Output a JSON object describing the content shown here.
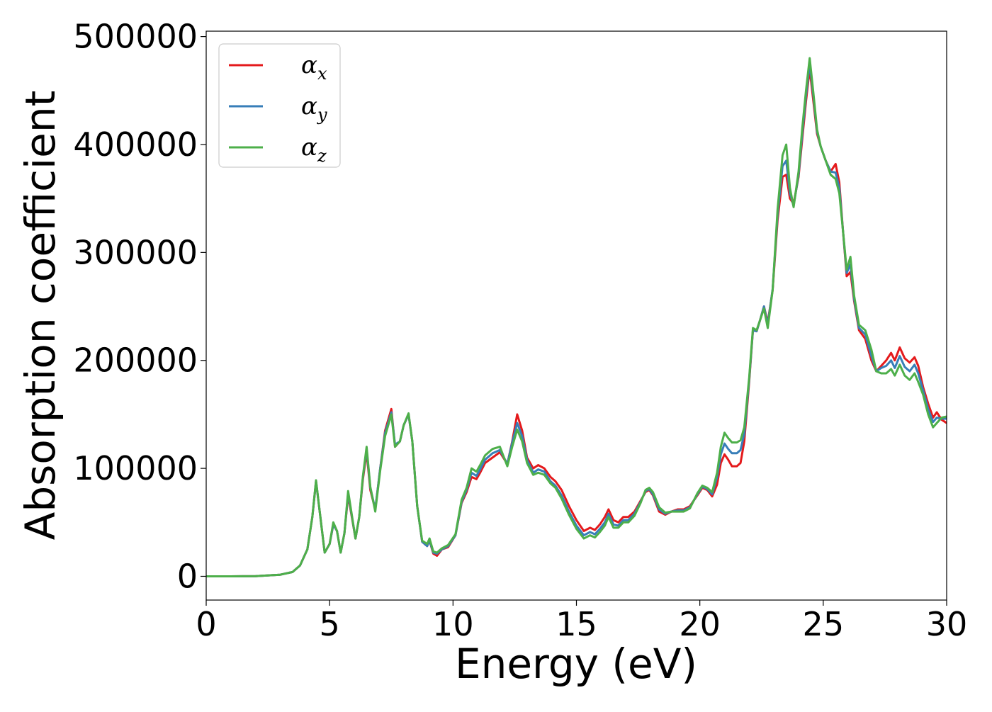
{
  "chart_data": {
    "type": "line",
    "xlabel": "Energy (eV)",
    "ylabel": "Absorption coefficient",
    "xlim": [
      0,
      30
    ],
    "ylim": [
      -22000,
      505000
    ],
    "xticks": [
      0,
      5,
      10,
      15,
      20,
      25,
      30
    ],
    "yticks": [
      0,
      100000,
      200000,
      300000,
      400000,
      500000
    ],
    "grid": false,
    "legend_position": "top-left",
    "series": [
      {
        "name": "α_x",
        "symbol": "α",
        "subscript": "x",
        "color": "#e41a1c",
        "x": [
          0,
          1,
          2,
          3,
          3.5,
          3.8,
          4.1,
          4.3,
          4.45,
          4.6,
          4.8,
          5.0,
          5.15,
          5.3,
          5.45,
          5.6,
          5.75,
          5.9,
          6.05,
          6.2,
          6.35,
          6.5,
          6.65,
          6.85,
          7.05,
          7.25,
          7.5,
          7.65,
          7.85,
          8.0,
          8.2,
          8.35,
          8.55,
          8.75,
          8.95,
          9.05,
          9.2,
          9.35,
          9.55,
          9.8,
          10.1,
          10.35,
          10.55,
          10.75,
          10.95,
          11.1,
          11.3,
          11.6,
          11.9,
          12.2,
          12.4,
          12.6,
          12.8,
          13.0,
          13.25,
          13.45,
          13.7,
          13.95,
          14.15,
          14.4,
          14.7,
          15.0,
          15.3,
          15.55,
          15.75,
          15.95,
          16.15,
          16.3,
          16.5,
          16.7,
          16.9,
          17.1,
          17.35,
          17.6,
          17.8,
          17.95,
          18.1,
          18.35,
          18.6,
          18.85,
          19.1,
          19.35,
          19.6,
          19.9,
          20.1,
          20.3,
          20.5,
          20.7,
          20.85,
          21.0,
          21.15,
          21.3,
          21.5,
          21.65,
          21.8,
          22.0,
          22.15,
          22.3,
          22.45,
          22.6,
          22.75,
          22.95,
          23.15,
          23.35,
          23.5,
          23.65,
          23.8,
          24.0,
          24.15,
          24.3,
          24.45,
          24.6,
          24.75,
          24.9,
          25.1,
          25.3,
          25.5,
          25.65,
          25.8,
          25.95,
          26.1,
          26.25,
          26.45,
          26.7,
          26.95,
          27.15,
          27.35,
          27.55,
          27.75,
          27.9,
          28.1,
          28.3,
          28.5,
          28.7,
          28.85,
          29.05,
          29.25,
          29.45,
          29.6,
          29.8,
          30.0
        ],
        "y": [
          0,
          0,
          200,
          1500,
          4000,
          10000,
          25000,
          55000,
          88000,
          60000,
          22000,
          30000,
          48000,
          42000,
          22000,
          40000,
          75000,
          55000,
          35000,
          55000,
          90000,
          115000,
          80000,
          62000,
          100000,
          135000,
          155000,
          120000,
          125000,
          140000,
          150000,
          125000,
          65000,
          32000,
          28000,
          33000,
          21000,
          19000,
          25000,
          27000,
          38000,
          68000,
          78000,
          92000,
          90000,
          96000,
          105000,
          110000,
          115000,
          104000,
          125000,
          150000,
          135000,
          110000,
          100000,
          103000,
          100000,
          92000,
          88000,
          80000,
          65000,
          52000,
          42000,
          45000,
          43000,
          48000,
          55000,
          62000,
          52000,
          50000,
          55000,
          55000,
          60000,
          70000,
          78000,
          80000,
          75000,
          60000,
          57000,
          60000,
          62000,
          62000,
          65000,
          75000,
          82000,
          80000,
          74000,
          85000,
          105000,
          113000,
          108000,
          102000,
          102000,
          105000,
          125000,
          180000,
          228000,
          227000,
          238000,
          250000,
          235000,
          265000,
          330000,
          370000,
          372000,
          350000,
          345000,
          370000,
          405000,
          440000,
          470000,
          440000,
          410000,
          398000,
          385000,
          375000,
          382000,
          365000,
          320000,
          278000,
          282000,
          255000,
          228000,
          220000,
          200000,
          190000,
          195000,
          200000,
          207000,
          200000,
          212000,
          202000,
          198000,
          203000,
          195000,
          175000,
          160000,
          147000,
          152000,
          145000,
          142000
        ]
      },
      {
        "name": "α_y",
        "symbol": "α",
        "subscript": "y",
        "color": "#377eb8",
        "x": [
          0,
          1,
          2,
          3,
          3.5,
          3.8,
          4.1,
          4.3,
          4.45,
          4.6,
          4.8,
          5.0,
          5.15,
          5.3,
          5.45,
          5.6,
          5.75,
          5.9,
          6.05,
          6.2,
          6.35,
          6.5,
          6.65,
          6.85,
          7.05,
          7.25,
          7.5,
          7.65,
          7.85,
          8.0,
          8.2,
          8.35,
          8.55,
          8.75,
          8.95,
          9.05,
          9.2,
          9.35,
          9.55,
          9.8,
          10.1,
          10.35,
          10.55,
          10.75,
          10.95,
          11.1,
          11.3,
          11.6,
          11.9,
          12.2,
          12.4,
          12.6,
          12.8,
          13.0,
          13.25,
          13.45,
          13.7,
          13.95,
          14.15,
          14.4,
          14.7,
          15.0,
          15.3,
          15.55,
          15.75,
          15.95,
          16.15,
          16.3,
          16.5,
          16.7,
          16.9,
          17.1,
          17.35,
          17.6,
          17.8,
          17.95,
          18.1,
          18.35,
          18.6,
          18.85,
          19.1,
          19.35,
          19.6,
          19.9,
          20.1,
          20.3,
          20.5,
          20.7,
          20.85,
          21.0,
          21.15,
          21.3,
          21.5,
          21.65,
          21.8,
          22.0,
          22.15,
          22.3,
          22.45,
          22.6,
          22.75,
          22.95,
          23.15,
          23.35,
          23.5,
          23.65,
          23.8,
          24.0,
          24.15,
          24.3,
          24.45,
          24.6,
          24.75,
          24.9,
          25.1,
          25.3,
          25.5,
          25.65,
          25.8,
          25.95,
          26.1,
          26.25,
          26.45,
          26.7,
          26.95,
          27.15,
          27.35,
          27.55,
          27.75,
          27.9,
          28.1,
          28.3,
          28.5,
          28.7,
          28.85,
          29.05,
          29.25,
          29.45,
          29.6,
          29.8,
          30.0
        ],
        "y": [
          0,
          0,
          200,
          1500,
          4000,
          10000,
          25000,
          55000,
          88000,
          60000,
          22000,
          30000,
          48000,
          42000,
          22000,
          40000,
          77000,
          56000,
          35000,
          55000,
          92000,
          118000,
          82000,
          62000,
          100000,
          133000,
          152000,
          122000,
          125000,
          140000,
          150000,
          125000,
          65000,
          32000,
          28000,
          33000,
          22000,
          21000,
          25000,
          28000,
          38000,
          69000,
          80000,
          96000,
          93000,
          99000,
          108000,
          114000,
          117000,
          104000,
          124000,
          142000,
          130000,
          108000,
          96000,
          99000,
          97000,
          88000,
          84000,
          75000,
          60000,
          47000,
          38000,
          41000,
          39000,
          44000,
          50000,
          58000,
          48000,
          47000,
          52000,
          52000,
          58000,
          69000,
          79000,
          81000,
          76000,
          62000,
          58000,
          60000,
          61000,
          61000,
          64000,
          76000,
          83000,
          81000,
          76000,
          92000,
          113000,
          123000,
          118000,
          114000,
          114000,
          117000,
          132000,
          182000,
          228000,
          227000,
          238000,
          250000,
          233000,
          266000,
          335000,
          380000,
          385000,
          355000,
          343000,
          372000,
          410000,
          445000,
          475000,
          445000,
          412000,
          398000,
          385000,
          375000,
          374000,
          360000,
          320000,
          281000,
          289000,
          257000,
          230000,
          224000,
          204000,
          190000,
          193000,
          195000,
          200000,
          193000,
          204000,
          194000,
          190000,
          196000,
          188000,
          172000,
          155000,
          143000,
          147000,
          146000,
          146000
        ]
      },
      {
        "name": "α_z",
        "symbol": "α",
        "subscript": "z",
        "color": "#4daf4a",
        "x": [
          0,
          1,
          2,
          3,
          3.5,
          3.8,
          4.1,
          4.3,
          4.45,
          4.6,
          4.8,
          5.0,
          5.15,
          5.3,
          5.45,
          5.6,
          5.75,
          5.9,
          6.05,
          6.2,
          6.35,
          6.5,
          6.65,
          6.85,
          7.05,
          7.25,
          7.5,
          7.65,
          7.85,
          8.0,
          8.2,
          8.35,
          8.55,
          8.75,
          8.95,
          9.05,
          9.2,
          9.35,
          9.55,
          9.8,
          10.1,
          10.35,
          10.55,
          10.75,
          10.95,
          11.1,
          11.3,
          11.6,
          11.9,
          12.2,
          12.4,
          12.6,
          12.8,
          13.0,
          13.25,
          13.45,
          13.7,
          13.95,
          14.15,
          14.4,
          14.7,
          15.0,
          15.3,
          15.55,
          15.75,
          15.95,
          16.15,
          16.3,
          16.5,
          16.7,
          16.9,
          17.1,
          17.35,
          17.6,
          17.8,
          17.95,
          18.1,
          18.35,
          18.6,
          18.85,
          19.1,
          19.35,
          19.6,
          19.9,
          20.1,
          20.3,
          20.5,
          20.7,
          20.85,
          21.0,
          21.15,
          21.3,
          21.5,
          21.65,
          21.8,
          22.0,
          22.15,
          22.3,
          22.45,
          22.6,
          22.75,
          22.95,
          23.15,
          23.35,
          23.5,
          23.65,
          23.8,
          24.0,
          24.15,
          24.3,
          24.45,
          24.6,
          24.75,
          24.9,
          25.1,
          25.3,
          25.5,
          25.65,
          25.8,
          25.95,
          26.1,
          26.25,
          26.45,
          26.7,
          26.95,
          27.15,
          27.35,
          27.55,
          27.75,
          27.9,
          28.1,
          28.3,
          28.5,
          28.7,
          28.85,
          29.05,
          29.25,
          29.45,
          29.6,
          29.8,
          30.0
        ],
        "y": [
          0,
          0,
          200,
          1500,
          4000,
          10000,
          25000,
          55000,
          89000,
          60000,
          22000,
          30000,
          50000,
          42000,
          22000,
          40000,
          79000,
          57000,
          35000,
          55000,
          93000,
          120000,
          83000,
          60000,
          98000,
          130000,
          150000,
          120000,
          125000,
          140000,
          151000,
          125000,
          65000,
          33000,
          30000,
          35000,
          23000,
          22000,
          26000,
          29000,
          39000,
          71000,
          82000,
          100000,
          97000,
          103000,
          112000,
          118000,
          120000,
          102000,
          120000,
          136000,
          125000,
          105000,
          94000,
          96000,
          94000,
          86000,
          82000,
          72000,
          57000,
          44000,
          35000,
          38000,
          36000,
          41000,
          47000,
          55000,
          45000,
          45000,
          50000,
          50000,
          56000,
          68000,
          80000,
          82000,
          78000,
          64000,
          59000,
          60000,
          60000,
          60000,
          63000,
          77000,
          84000,
          82000,
          78000,
          96000,
          120000,
          133000,
          128000,
          124000,
          124000,
          126000,
          138000,
          184000,
          230000,
          228000,
          238000,
          248000,
          230000,
          265000,
          340000,
          390000,
          400000,
          360000,
          342000,
          375000,
          415000,
          450000,
          480000,
          448000,
          414000,
          398000,
          385000,
          372000,
          368000,
          355000,
          320000,
          284000,
          296000,
          260000,
          233000,
          228000,
          210000,
          190000,
          188000,
          188000,
          192000,
          186000,
          196000,
          186000,
          182000,
          188000,
          180000,
          168000,
          150000,
          138000,
          142000,
          147000,
          148000
        ]
      }
    ]
  }
}
